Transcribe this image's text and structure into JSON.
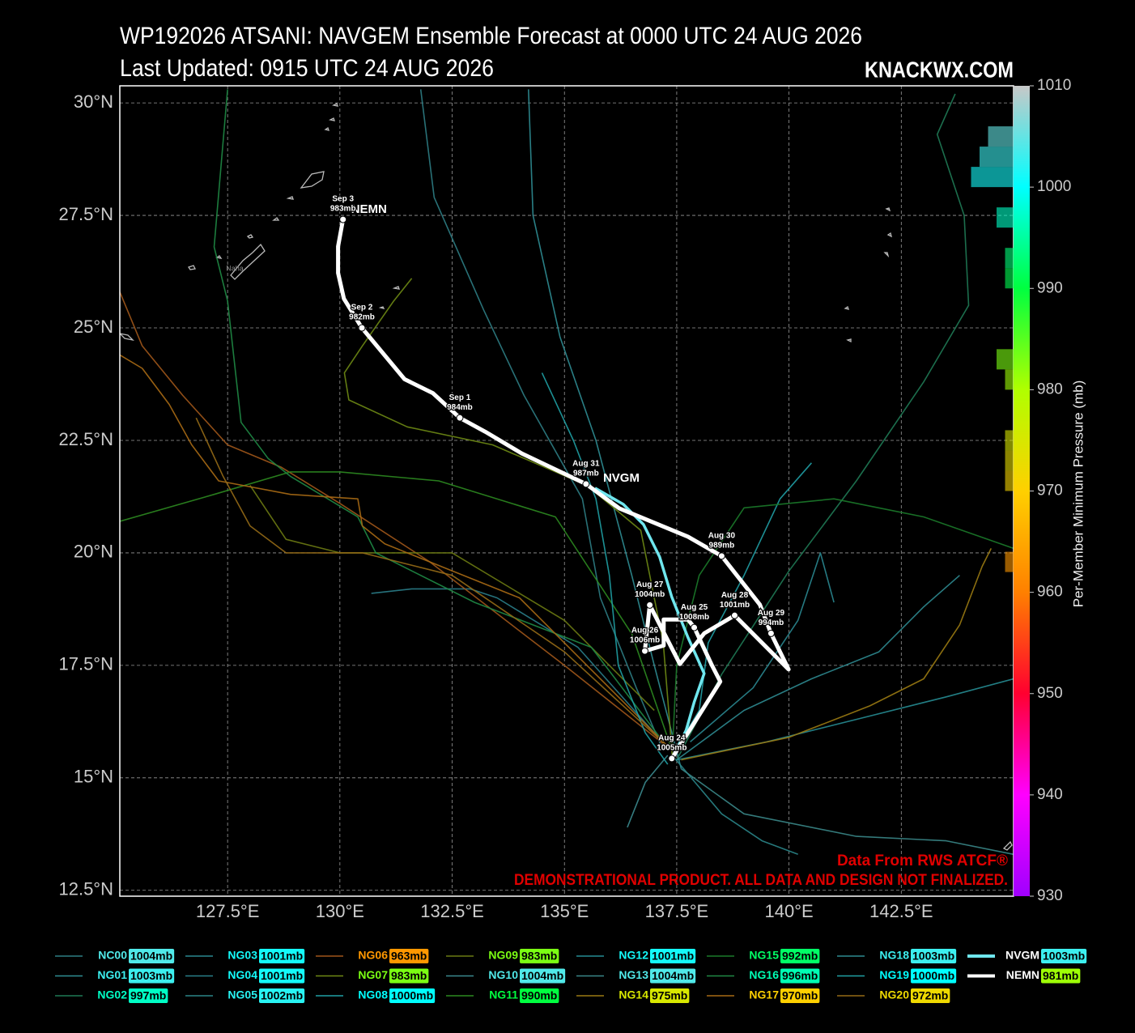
{
  "chart_data": {
    "type": "track_map",
    "title": "WP192026 ATSANI: NAVGEM Ensemble Forecast at 0000 UTC 24 AUG 2026",
    "subtitle": "Last Updated: 0915 UTC 24 AUG 2026",
    "brand": "KNACKWX.COM",
    "source_note": "Data From RWS ATCF®",
    "disclaimer": "DEMONSTRATIONAL PRODUCT. ALL DATA AND DESIGN NOT FINALIZED.",
    "xlim": [
      125.1,
      145.0
    ],
    "ylim": [
      12.37,
      30.38
    ],
    "xticks": [
      {
        "value": 127.5,
        "label": "127.5°E"
      },
      {
        "value": 130,
        "label": "130°E"
      },
      {
        "value": 132.5,
        "label": "132.5°E"
      },
      {
        "value": 135,
        "label": "135°E"
      },
      {
        "value": 137.5,
        "label": "137.5°E"
      },
      {
        "value": 140,
        "label": "140°E"
      },
      {
        "value": 142.5,
        "label": "142.5°E"
      }
    ],
    "yticks": [
      {
        "value": 12.5,
        "label": "12.5°N"
      },
      {
        "value": 15,
        "label": "15°N"
      },
      {
        "value": 17.5,
        "label": "17.5°N"
      },
      {
        "value": 20,
        "label": "20°N"
      },
      {
        "value": 22.5,
        "label": "22.5°N"
      },
      {
        "value": 25,
        "label": "25°N"
      },
      {
        "value": 27.5,
        "label": "27.5°N"
      },
      {
        "value": 30,
        "label": "30°N"
      }
    ],
    "grid": true,
    "colorbar": {
      "label": "Per-Member Minimum Pressure (mb)",
      "lim": [
        930,
        1010
      ],
      "ticks": [
        930,
        940,
        950,
        960,
        970,
        980,
        990,
        1000,
        1010
      ],
      "colors": [
        "#a000ff",
        "#ff00ff",
        "#ff0030",
        "#ff8000",
        "#ffd000",
        "#b0ff00",
        "#00ff40",
        "#00ffff",
        "#c8c8c8"
      ],
      "histogram": true
    },
    "place_labels": [
      {
        "name": "Naha",
        "lon": 127.66,
        "lat": 26.31
      }
    ],
    "series": [
      {
        "name": "NC00",
        "color": "#2e7d84",
        "value": 1004,
        "value_label": "1004mb",
        "lon": [
          137.2,
          136.6,
          135.8,
          135.4,
          134.1,
          133.2,
          132.1,
          131.8
        ],
        "lat": [
          15.6,
          17.0,
          19.0,
          21.2,
          23.5,
          25.4,
          27.9,
          30.3
        ]
      },
      {
        "name": "NG01",
        "color": "#2f8d93",
        "value": 1003,
        "value_label": "1003mb",
        "lon": [
          137.6,
          137.0,
          136.5,
          135.7,
          134.9,
          134.3,
          134.2
        ],
        "lat": [
          15.2,
          17.5,
          19.5,
          22.5,
          24.8,
          27.5,
          30.3
        ]
      },
      {
        "name": "NG02",
        "color": "#1f7a55",
        "value": 997,
        "value_label": "997mb",
        "lon": [
          137.5,
          138.5,
          140.0,
          141.5,
          143.0,
          144.0,
          143.9,
          143.3,
          143.7
        ],
        "lat": [
          15.4,
          17.3,
          19.6,
          21.6,
          23.8,
          25.5,
          27.5,
          29.3,
          30.2
        ]
      },
      {
        "name": "NG03",
        "color": "#2a8790",
        "value": 1001,
        "value_label": "1001mb",
        "lon": [
          137.8,
          139.2,
          140.2,
          140.7,
          141.0
        ],
        "lat": [
          15.8,
          17.0,
          18.5,
          20.0,
          18.9
        ]
      },
      {
        "name": "NG04",
        "color": "#2a7e8a",
        "value": 1001,
        "value_label": "1001mb",
        "lon": [
          137.0,
          135.3,
          133.5,
          132.9,
          131.6,
          130.7
        ],
        "lat": [
          16.0,
          17.9,
          19.0,
          19.2,
          19.2,
          19.1
        ]
      },
      {
        "name": "NG05",
        "color": "#2a8588",
        "value": 1002,
        "value_label": "1002mb",
        "lon": [
          137.4,
          138.5,
          139.4,
          140.2
        ],
        "lat": [
          15.5,
          14.2,
          13.6,
          13.3
        ]
      },
      {
        "name": "NG06",
        "color": "#a0561a",
        "value": 963,
        "value_label": "963mb",
        "lon": [
          137.4,
          135.0,
          132.0,
          130.0,
          128.7,
          127.5,
          126.5,
          125.6,
          125.1
        ],
        "lat": [
          15.6,
          17.5,
          19.8,
          21.1,
          21.9,
          22.4,
          23.5,
          24.6,
          25.8
        ]
      },
      {
        "name": "NG07",
        "color": "#6e8a14",
        "value": 983,
        "value_label": "983mb",
        "lon": [
          137.4,
          137.2,
          136.7,
          135.5,
          133.4,
          131.5,
          130.2,
          130.1,
          130.5,
          131.2,
          131.6
        ],
        "lat": [
          15.5,
          18.0,
          20.5,
          21.5,
          22.4,
          22.8,
          23.4,
          24.0,
          24.6,
          25.6,
          26.1
        ]
      },
      {
        "name": "NG08",
        "color": "#209fa5",
        "value": 1000,
        "value_label": "1000mb",
        "lon": [
          137.4,
          138.0,
          138.2,
          139.0,
          139.8,
          140.5
        ],
        "lat": [
          15.5,
          16.5,
          18.0,
          19.5,
          21.2,
          22.0
        ]
      },
      {
        "name": "NG09",
        "color": "#6b7a12",
        "value": 983,
        "value_label": "983mb",
        "lon": [
          137.0,
          135.0,
          132.5,
          130.0,
          128.8,
          128.0
        ],
        "lat": [
          16.5,
          18.5,
          20.0,
          20.0,
          20.3,
          21.5
        ]
      },
      {
        "name": "NG10",
        "color": "#3b8a8e",
        "value": 1004,
        "value_label": "1004mb",
        "lon": [
          137.3,
          136.8,
          136.4
        ],
        "lat": [
          15.5,
          14.9,
          13.9
        ]
      },
      {
        "name": "NG11",
        "color": "#2c8a20",
        "value": 990,
        "value_label": "990mb",
        "lon": [
          137.4,
          136.5,
          134.8,
          132.2,
          130.0,
          128.9,
          127.2,
          125.1
        ],
        "lat": [
          15.6,
          18.2,
          20.8,
          21.6,
          21.8,
          21.8,
          21.3,
          20.7
        ]
      },
      {
        "name": "NG12",
        "color": "#268c92",
        "value": 1001,
        "value_label": "1001mb",
        "lon": [
          137.5,
          139.5,
          141.5,
          143.5,
          145.0
        ],
        "lat": [
          15.4,
          15.8,
          16.3,
          16.8,
          17.2
        ]
      },
      {
        "name": "NG13",
        "color": "#3a8788",
        "value": 1004,
        "value_label": "1004mb",
        "lon": [
          137.6,
          139.0,
          141.5,
          143.5,
          145.0
        ],
        "lat": [
          15.2,
          14.2,
          13.7,
          13.6,
          13.3
        ]
      },
      {
        "name": "NG14",
        "color": "#9a7a12",
        "value": 975,
        "value_label": "975mb",
        "lon": [
          137.6,
          140.0,
          141.8,
          143.0,
          143.8,
          144.3,
          144.5
        ],
        "lat": [
          15.4,
          15.9,
          16.6,
          17.2,
          18.4,
          19.7,
          20.1
        ]
      },
      {
        "name": "NG15",
        "color": "#1b7a2a",
        "value": 992,
        "value_label": "992mb",
        "lon": [
          137.4,
          137.5,
          138.0,
          139.0,
          141.0,
          143.0,
          145.0
        ],
        "lat": [
          15.6,
          17.5,
          19.5,
          21.0,
          21.2,
          20.8,
          20.1
        ]
      },
      {
        "name": "NG16",
        "color": "#1f8a45",
        "value": 996,
        "value_label": "996mb",
        "lon": [
          137.2,
          135.6,
          133.0,
          130.8,
          130.4,
          128.9,
          128.4,
          127.8,
          127.5,
          127.2,
          127.5
        ],
        "lat": [
          15.8,
          17.9,
          18.9,
          20.0,
          20.8,
          21.7,
          22.1,
          22.9,
          25.6,
          26.8,
          30.3
        ]
      },
      {
        "name": "NG17",
        "color": "#a86a14",
        "value": 970,
        "value_label": "970mb",
        "lon": [
          137.4,
          134.0,
          131.0,
          130.5,
          130.4,
          128.9,
          127.3,
          126.7,
          126.2,
          125.6,
          125.1
        ],
        "lat": [
          15.6,
          19.0,
          20.2,
          20.6,
          21.2,
          21.3,
          21.6,
          22.4,
          23.3,
          24.1,
          24.4
        ]
      },
      {
        "name": "NG18",
        "color": "#2e8a90",
        "value": 1003,
        "value_label": "1003mb",
        "lon": [
          137.5,
          139.0,
          140.5,
          142.0,
          143.0,
          143.8
        ],
        "lat": [
          15.4,
          16.5,
          17.2,
          17.8,
          18.8,
          19.5
        ]
      },
      {
        "name": "NG19",
        "color": "#1fa0a4",
        "value": 1000,
        "value_label": "1000mb",
        "lon": [
          137.3,
          136.8,
          136.2,
          136.0,
          135.7,
          135.2,
          134.5
        ],
        "lat": [
          15.3,
          16.0,
          17.5,
          19.5,
          21.2,
          22.5,
          24.0
        ]
      },
      {
        "name": "NG20",
        "color": "#956a16",
        "value": 972,
        "value_label": "972mb",
        "lon": [
          137.4,
          135.0,
          132.5,
          130.5,
          128.8,
          128.0,
          127.4,
          126.8
        ],
        "lat": [
          15.6,
          17.8,
          19.5,
          20.0,
          20.0,
          20.6,
          21.7,
          23.0
        ]
      },
      {
        "name": "NVGM",
        "color": "#6fe6ee",
        "highlight": true,
        "value": 1003,
        "value_label": "1003mb",
        "lon": [
          137.39,
          137.71,
          137.89,
          138.11,
          137.75,
          137.39,
          137.12,
          136.76,
          136.31,
          135.68
        ],
        "lat": [
          15.43,
          16.06,
          16.69,
          17.32,
          18.12,
          19.02,
          19.91,
          20.63,
          21.08,
          21.44
        ]
      },
      {
        "name": "NEMN",
        "color": "#ffffff",
        "highlight": true,
        "value": 981,
        "value_label": "981mb",
        "lon": [
          137.39,
          138.47,
          138.29,
          137.89,
          137.75,
          137.21,
          137.21,
          136.79,
          136.9,
          137.57,
          138.11,
          138.79,
          139.99,
          139.6,
          139.35,
          138.5,
          137.75,
          136.22,
          135.48,
          134.05,
          133.24,
          132.67,
          132.07,
          131.44,
          130.49,
          130.09,
          129.96,
          129.96,
          130.07
        ],
        "lat": [
          15.43,
          17.14,
          17.49,
          18.34,
          18.52,
          18.52,
          17.94,
          17.82,
          18.84,
          17.53,
          18.21,
          18.61,
          17.41,
          18.21,
          18.85,
          19.93,
          20.36,
          20.99,
          21.53,
          22.21,
          22.69,
          23.0,
          23.55,
          23.86,
          25.0,
          25.65,
          26.22,
          26.81,
          27.41
        ],
        "point_dates": [
          "Aug 24",
          null,
          null,
          "Aug 25",
          null,
          null,
          null,
          "Aug 26",
          "Aug 27",
          null,
          null,
          "Aug 28",
          null,
          "Aug 29",
          null,
          "Aug 30",
          null,
          null,
          "Aug 31",
          null,
          null,
          "Sep 1",
          null,
          null,
          "Sep 2",
          null,
          null,
          null,
          "Sep 3"
        ],
        "point_pressures": [
          1005,
          null,
          null,
          1008,
          null,
          null,
          null,
          1006,
          1004,
          null,
          null,
          1001,
          null,
          994,
          null,
          989,
          null,
          null,
          987,
          null,
          null,
          984,
          null,
          null,
          982,
          null,
          null,
          null,
          983
        ],
        "point_pressure_labels": [
          "1005mb",
          null,
          null,
          "1008mb",
          null,
          null,
          null,
          "1006mb",
          "1004mb",
          null,
          null,
          "1001mb",
          null,
          "994mb",
          null,
          "989mb",
          null,
          null,
          "987mb",
          null,
          null,
          "984mb",
          null,
          null,
          "982mb",
          null,
          null,
          null,
          "983mb"
        ]
      }
    ]
  }
}
